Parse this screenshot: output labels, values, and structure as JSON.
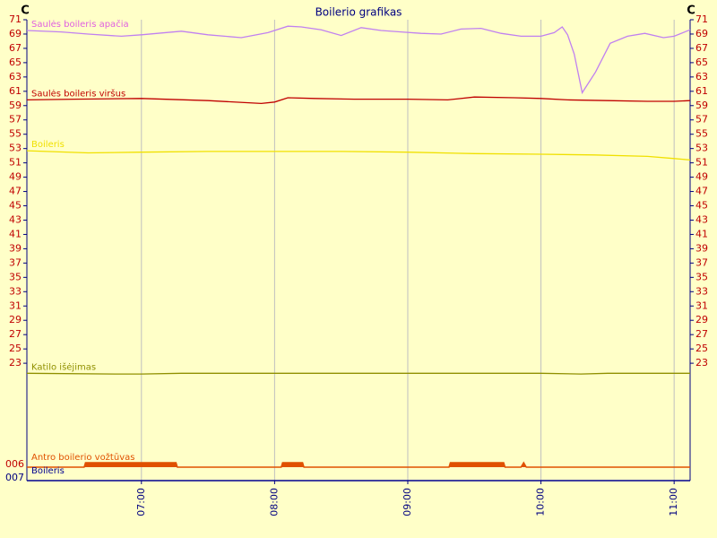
{
  "chart_data": {
    "type": "line",
    "title": "Boilerio grafikas",
    "y_unit": "C",
    "xlim": [
      6.14,
      11.12
    ],
    "xticks": [
      {
        "value": 7,
        "label": "07:00"
      },
      {
        "value": 8,
        "label": "08:00"
      },
      {
        "value": 9,
        "label": "09:00"
      },
      {
        "value": 10,
        "label": "10:00"
      },
      {
        "value": 11,
        "label": "11:00"
      }
    ],
    "ylim": [
      6.6,
      71
    ],
    "yticks": [
      71,
      69,
      67,
      65,
      63,
      61,
      59,
      57,
      55,
      53,
      51,
      49,
      47,
      45,
      43,
      41,
      39,
      37,
      35,
      33,
      31,
      29,
      27,
      25,
      23
    ],
    "grid": true,
    "series": [
      {
        "name": "Saulės boileris apačia",
        "color": "#c080f0",
        "label_color": "#e060e0",
        "x": [
          6.14,
          6.4,
          6.6,
          6.85,
          7.0,
          7.3,
          7.5,
          7.75,
          7.95,
          8.1,
          8.2,
          8.35,
          8.5,
          8.65,
          8.8,
          8.95,
          9.1,
          9.25,
          9.4,
          9.55,
          9.7,
          9.85,
          10.0,
          10.1,
          10.16,
          10.2,
          10.25,
          10.31,
          10.41,
          10.52,
          10.65,
          10.78,
          10.92,
          11.0,
          11.12
        ],
        "values": [
          69.5,
          69.3,
          69.0,
          68.7,
          68.9,
          69.4,
          68.9,
          68.5,
          69.2,
          70.1,
          70.0,
          69.6,
          68.8,
          69.9,
          69.5,
          69.3,
          69.1,
          69.0,
          69.7,
          69.8,
          69.1,
          68.7,
          68.7,
          69.2,
          70.0,
          68.9,
          66.2,
          60.8,
          63.7,
          67.7,
          68.7,
          69.1,
          68.5,
          68.7,
          69.6
        ]
      },
      {
        "name": "Saulės boileris viršus",
        "color": "#c00000",
        "label_color": "#c00000",
        "x": [
          6.14,
          6.5,
          7.0,
          7.5,
          7.9,
          8.0,
          8.1,
          8.3,
          8.6,
          9.0,
          9.3,
          9.5,
          9.8,
          10.0,
          10.2,
          10.5,
          10.8,
          11.0,
          11.12
        ],
        "values": [
          59.8,
          59.9,
          60.0,
          59.7,
          59.3,
          59.5,
          60.1,
          60.0,
          59.9,
          59.9,
          59.8,
          60.2,
          60.1,
          60.0,
          59.8,
          59.7,
          59.6,
          59.6,
          59.7
        ]
      },
      {
        "name": "Boileris",
        "color": "#f0e000",
        "label_color": "#f0e000",
        "x": [
          6.14,
          6.6,
          7.0,
          7.5,
          8.0,
          8.5,
          9.0,
          9.5,
          10.0,
          10.4,
          10.8,
          11.0,
          11.12
        ],
        "values": [
          52.7,
          52.4,
          52.5,
          52.6,
          52.6,
          52.6,
          52.5,
          52.3,
          52.2,
          52.1,
          51.9,
          51.6,
          51.4
        ]
      },
      {
        "name": "Katilo išėjimas",
        "color": "#909000",
        "label_color": "#909000",
        "x": [
          6.14,
          6.8,
          7.0,
          7.3,
          8.0,
          9.0,
          10.0,
          10.3,
          10.5,
          11.12
        ],
        "values": [
          21.6,
          21.5,
          21.5,
          21.6,
          21.6,
          21.6,
          21.6,
          21.5,
          21.6,
          21.6
        ]
      }
    ],
    "digital_series": [
      {
        "name": "Antro boilerio vožtūvas",
        "color": "#e05000",
        "label": "006",
        "x": [
          6.14,
          6.57,
          6.58,
          7.26,
          7.27,
          8.05,
          8.06,
          8.21,
          8.22,
          9.31,
          9.32,
          9.72,
          9.73,
          9.85,
          9.87,
          9.89,
          11.12
        ],
        "values": [
          0,
          0,
          1,
          1,
          0,
          0,
          1,
          1,
          0,
          0,
          1,
          1,
          0,
          0,
          1,
          0,
          0
        ]
      },
      {
        "name": "Boileris",
        "color": "#000090",
        "label": "007",
        "x": [
          6.14,
          11.12
        ],
        "values": [
          0,
          0
        ]
      }
    ]
  }
}
